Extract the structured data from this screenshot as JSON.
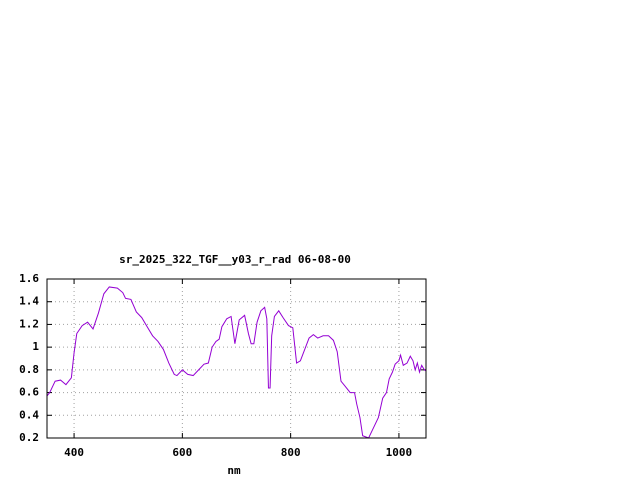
{
  "chart_data": {
    "type": "line",
    "title": "sr_2025_322_TGF__y03_r_rad 06-08-00",
    "x_label": "nm",
    "xlim": [
      350,
      1050
    ],
    "xticks": [
      400,
      600,
      800,
      1000
    ],
    "ylim": [
      0.2,
      1.6
    ],
    "yticks": [
      0.2,
      0.4,
      0.6,
      0.8,
      1,
      1.2,
      1.4,
      1.6
    ],
    "grid": true,
    "x": [
      350,
      355,
      365,
      375,
      385,
      395,
      400,
      405,
      415,
      425,
      435,
      445,
      455,
      465,
      480,
      490,
      495,
      505,
      515,
      525,
      535,
      545,
      555,
      565,
      575,
      585,
      590,
      600,
      610,
      620,
      630,
      640,
      648,
      655,
      662,
      668,
      673,
      682,
      690,
      697,
      705,
      715,
      722,
      727,
      732,
      738,
      745,
      752,
      756,
      759,
      762,
      765,
      770,
      778,
      786,
      796,
      804,
      811,
      818,
      826,
      834,
      842,
      850,
      860,
      870,
      879,
      886,
      893,
      900,
      910,
      918,
      922,
      928,
      933,
      944,
      952,
      962,
      970,
      977,
      982,
      988,
      993,
      1000,
      1003,
      1008,
      1015,
      1021,
      1026,
      1030,
      1034,
      1038,
      1042,
      1047,
      1050
    ],
    "series": [
      {
        "name": "sr_2025_322_TGF__y03_r_rad",
        "color": "#9400d3",
        "values": [
          0.57,
          0.6,
          0.7,
          0.71,
          0.67,
          0.73,
          0.95,
          1.12,
          1.19,
          1.22,
          1.16,
          1.3,
          1.47,
          1.53,
          1.52,
          1.48,
          1.43,
          1.42,
          1.31,
          1.26,
          1.18,
          1.1,
          1.05,
          0.98,
          0.86,
          0.76,
          0.75,
          0.8,
          0.76,
          0.75,
          0.8,
          0.85,
          0.86,
          1.0,
          1.05,
          1.07,
          1.18,
          1.25,
          1.27,
          1.03,
          1.24,
          1.28,
          1.12,
          1.03,
          1.03,
          1.22,
          1.32,
          1.35,
          1.25,
          0.64,
          0.64,
          1.1,
          1.27,
          1.32,
          1.26,
          1.19,
          1.17,
          0.86,
          0.88,
          0.98,
          1.08,
          1.11,
          1.08,
          1.1,
          1.1,
          1.06,
          0.96,
          0.7,
          0.66,
          0.6,
          0.6,
          0.5,
          0.38,
          0.22,
          0.2,
          0.28,
          0.38,
          0.55,
          0.6,
          0.72,
          0.78,
          0.85,
          0.88,
          0.93,
          0.84,
          0.86,
          0.92,
          0.88,
          0.8,
          0.86,
          0.78,
          0.84,
          0.8,
          0.79
        ]
      }
    ]
  }
}
